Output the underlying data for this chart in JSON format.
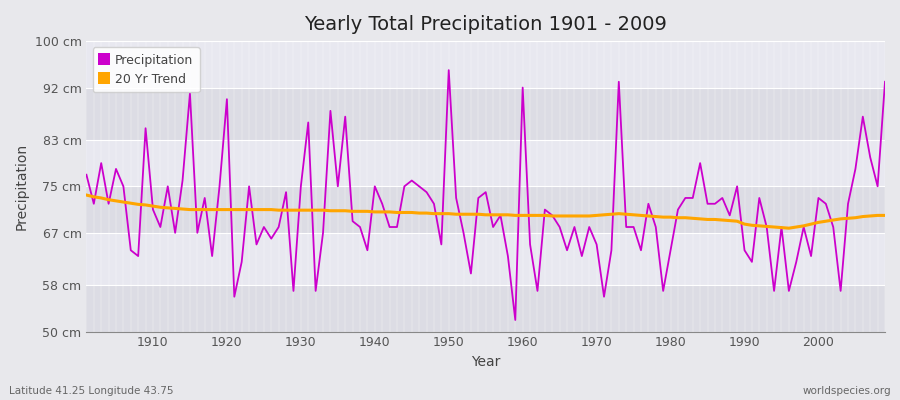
{
  "title": "Yearly Total Precipitation 1901 - 2009",
  "xlabel": "Year",
  "ylabel": "Precipitation",
  "subtitle_left": "Latitude 41.25 Longitude 43.75",
  "subtitle_right": "worldspecies.org",
  "precip_color": "#CC00CC",
  "trend_color": "#FFA500",
  "bg_color": "#E8E8EC",
  "plot_bg_color": "#E8E8EC",
  "ylim": [
    50,
    100
  ],
  "yticks": [
    50,
    58,
    67,
    75,
    83,
    92,
    100
  ],
  "ytick_labels": [
    "50 cm",
    "58 cm",
    "67 cm",
    "75 cm",
    "83 cm",
    "92 cm",
    "100 cm"
  ],
  "band_colors": [
    "#DCDCE4",
    "#E8E8F0"
  ],
  "years": [
    1901,
    1902,
    1903,
    1904,
    1905,
    1906,
    1907,
    1908,
    1909,
    1910,
    1911,
    1912,
    1913,
    1914,
    1915,
    1916,
    1917,
    1918,
    1919,
    1920,
    1921,
    1922,
    1923,
    1924,
    1925,
    1926,
    1927,
    1928,
    1929,
    1930,
    1931,
    1932,
    1933,
    1934,
    1935,
    1936,
    1937,
    1938,
    1939,
    1940,
    1941,
    1942,
    1943,
    1944,
    1945,
    1946,
    1947,
    1948,
    1949,
    1950,
    1951,
    1952,
    1953,
    1954,
    1955,
    1956,
    1957,
    1958,
    1959,
    1960,
    1961,
    1962,
    1963,
    1964,
    1965,
    1966,
    1967,
    1968,
    1969,
    1970,
    1971,
    1972,
    1973,
    1974,
    1975,
    1976,
    1977,
    1978,
    1979,
    1980,
    1981,
    1982,
    1983,
    1984,
    1985,
    1986,
    1987,
    1988,
    1989,
    1990,
    1991,
    1992,
    1993,
    1994,
    1995,
    1996,
    1997,
    1998,
    1999,
    2000,
    2001,
    2002,
    2003,
    2004,
    2005,
    2006,
    2007,
    2008,
    2009
  ],
  "precip": [
    77,
    72,
    79,
    72,
    78,
    75,
    64,
    63,
    85,
    71,
    68,
    75,
    67,
    76,
    91,
    67,
    73,
    63,
    75,
    90,
    56,
    62,
    75,
    65,
    68,
    66,
    68,
    74,
    57,
    75,
    86,
    57,
    67,
    88,
    75,
    87,
    69,
    68,
    64,
    75,
    72,
    68,
    68,
    75,
    76,
    75,
    74,
    72,
    65,
    95,
    73,
    67,
    60,
    73,
    74,
    68,
    70,
    63,
    52,
    92,
    65,
    57,
    71,
    70,
    68,
    64,
    68,
    63,
    68,
    65,
    56,
    64,
    93,
    68,
    68,
    64,
    72,
    68,
    57,
    64,
    71,
    73,
    73,
    79,
    72,
    72,
    73,
    70,
    75,
    64,
    62,
    73,
    68,
    57,
    68,
    57,
    62,
    68,
    63,
    73,
    72,
    68,
    57,
    72,
    78,
    87,
    80,
    75,
    93
  ],
  "trend": [
    73.5,
    73.2,
    73.0,
    72.7,
    72.5,
    72.3,
    72.1,
    71.9,
    71.8,
    71.6,
    71.4,
    71.3,
    71.2,
    71.1,
    71.0,
    71.0,
    71.0,
    71.0,
    71.0,
    71.0,
    71.0,
    71.0,
    71.0,
    71.0,
    71.0,
    71.0,
    70.9,
    70.9,
    70.9,
    70.9,
    70.9,
    70.9,
    70.9,
    70.8,
    70.8,
    70.8,
    70.7,
    70.7,
    70.7,
    70.6,
    70.6,
    70.6,
    70.5,
    70.5,
    70.5,
    70.4,
    70.4,
    70.3,
    70.3,
    70.3,
    70.2,
    70.2,
    70.2,
    70.2,
    70.1,
    70.1,
    70.1,
    70.1,
    70.0,
    70.0,
    70.0,
    70.0,
    70.0,
    69.9,
    69.9,
    69.9,
    69.9,
    69.9,
    69.9,
    70.0,
    70.1,
    70.2,
    70.3,
    70.2,
    70.1,
    70.0,
    69.9,
    69.8,
    69.7,
    69.7,
    69.6,
    69.6,
    69.5,
    69.4,
    69.3,
    69.3,
    69.2,
    69.1,
    69.0,
    68.5,
    68.3,
    68.2,
    68.1,
    68.0,
    67.9,
    67.8,
    68.0,
    68.2,
    68.5,
    68.8,
    69.0,
    69.2,
    69.4,
    69.5,
    69.6,
    69.8,
    69.9,
    70.0,
    70.0
  ]
}
